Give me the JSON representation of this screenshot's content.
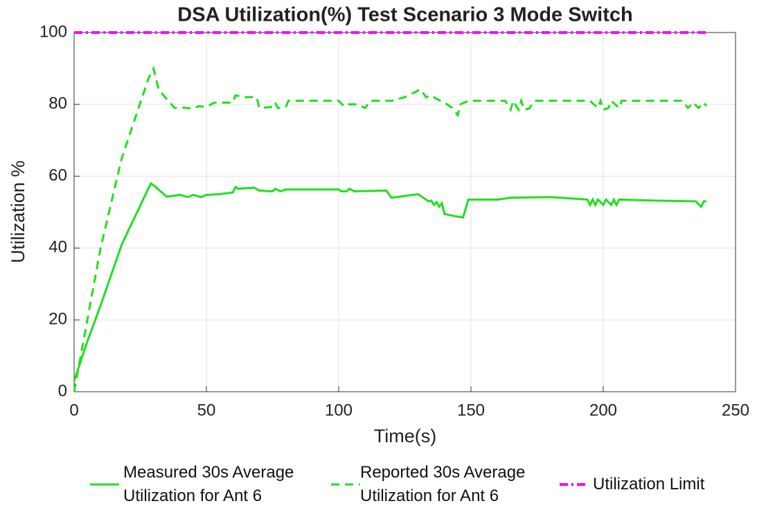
{
  "chart_data": {
    "type": "line",
    "title": "DSA Utilization(%) Test Scenario 3 Mode Switch",
    "xlabel": "Time(s)",
    "ylabel": "Utilization %",
    "xlim": [
      0,
      250
    ],
    "xticks": [
      0,
      50,
      100,
      150,
      200,
      250
    ],
    "ylim": [
      0,
      100
    ],
    "yticks": [
      0,
      20,
      40,
      60,
      80,
      100
    ],
    "grid": true,
    "legend": "bottom",
    "series": [
      {
        "name": "Measured 30s Average Utilization for Ant 6",
        "color": "#1ee01e",
        "style": "solid",
        "x": [
          0,
          5,
          10,
          18,
          29,
          30,
          35,
          40,
          43,
          45,
          48,
          50,
          55,
          60,
          61,
          62,
          68,
          70,
          75,
          76,
          78,
          80,
          100,
          101,
          103,
          104,
          106,
          118,
          120,
          130,
          132,
          134,
          135,
          136,
          137,
          138,
          139,
          140,
          143,
          147,
          149,
          160,
          165,
          180,
          194,
          195,
          196,
          197,
          198,
          200,
          201,
          203,
          204,
          205,
          206,
          220,
          235,
          237,
          238,
          239
        ],
        "values": [
          3,
          14,
          24,
          41,
          58,
          57.5,
          54.3,
          54.8,
          54.2,
          54.8,
          54.2,
          54.8,
          55,
          55.5,
          57,
          56.5,
          56.8,
          56,
          55.8,
          56.5,
          55.8,
          56.3,
          56.3,
          55.8,
          55.8,
          56.5,
          55.8,
          56,
          54,
          55,
          54,
          53,
          53.2,
          52,
          52.8,
          51.5,
          52.5,
          49.5,
          49,
          48.5,
          53.5,
          53.5,
          54,
          54.2,
          53.5,
          52,
          53.5,
          52,
          53.5,
          52,
          53.5,
          52,
          53.5,
          52,
          53.5,
          53.2,
          53,
          51.5,
          53,
          53
        ]
      },
      {
        "name": "Reported 30s Average Utilization for Ant 6",
        "color": "#1ee01e",
        "style": "dashed",
        "x": [
          0,
          5,
          10,
          18,
          28,
          30,
          32,
          35,
          38,
          40,
          45,
          47,
          50,
          53,
          60,
          61,
          65,
          69,
          70,
          75,
          76,
          77,
          80,
          81,
          100,
          102,
          103,
          107,
          110,
          112,
          120,
          125,
          131,
          133,
          135,
          137,
          140,
          143,
          145,
          146,
          149,
          163,
          165,
          166,
          168,
          169,
          170,
          172,
          174,
          190,
          195,
          198,
          199,
          200,
          202,
          203,
          206,
          207,
          208,
          230,
          232,
          234,
          236,
          238,
          239
        ],
        "values": [
          0,
          20,
          40,
          65,
          87,
          90,
          84,
          81.5,
          79,
          79.2,
          78.8,
          79.5,
          79.3,
          80.5,
          80.5,
          82.5,
          82,
          82,
          79,
          79.3,
          80.5,
          79,
          79.3,
          81,
          81,
          79.5,
          80,
          80,
          79,
          81,
          81,
          82,
          84.2,
          82,
          82.5,
          81.5,
          80.5,
          79,
          77,
          80,
          81,
          81,
          78.5,
          81,
          78.5,
          81,
          78.5,
          78.8,
          81,
          81,
          81,
          79,
          81,
          78.5,
          79,
          81,
          79,
          81,
          81,
          81,
          79,
          80.5,
          79,
          80.5,
          79.5
        ]
      },
      {
        "name": "Utilization Limit",
        "color": "#ff00ff",
        "style": "dashdot",
        "x": [
          0,
          239
        ],
        "values": [
          100,
          100
        ]
      }
    ]
  }
}
